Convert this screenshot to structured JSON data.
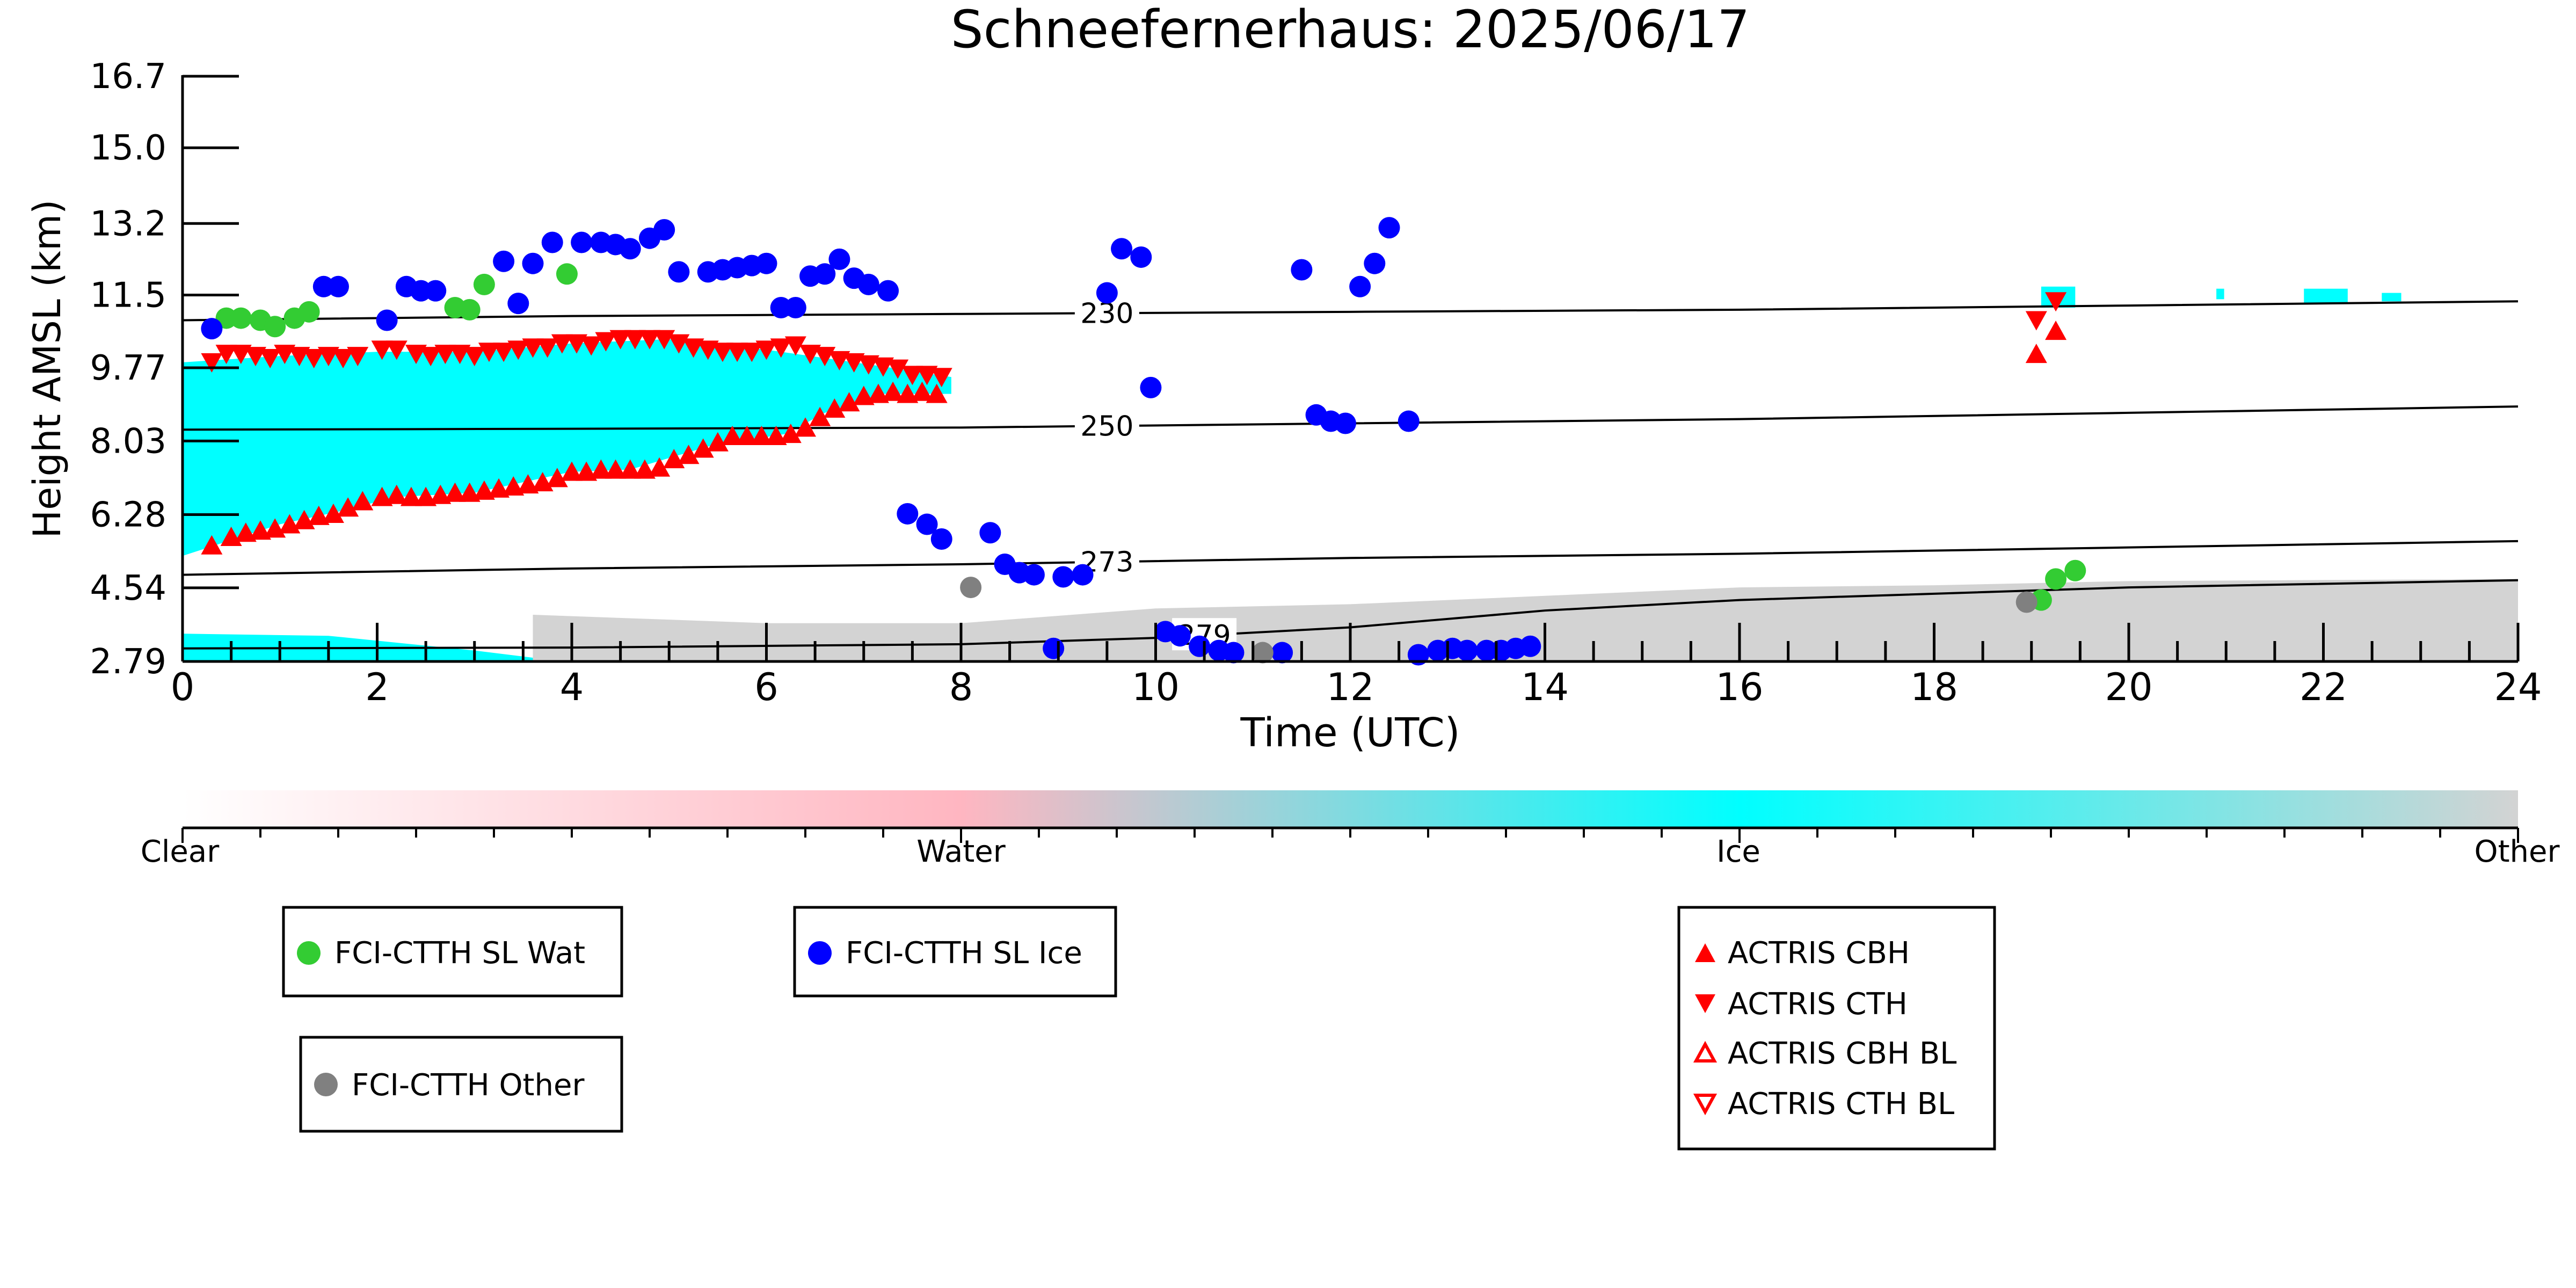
{
  "chart_data": {
    "type": "scatter",
    "title": "Schneefernerhaus: 2025/06/17",
    "xlabel": "Time (UTC)",
    "ylabel": "Height AMSL (km)",
    "xlim": [
      0,
      24
    ],
    "ylim": [
      2.79,
      16.7
    ],
    "x_ticks": [
      0,
      2,
      4,
      6,
      8,
      10,
      12,
      14,
      16,
      18,
      20,
      22,
      24
    ],
    "x_tick_labels": [
      "0",
      "2",
      "4",
      "6",
      "8",
      "10",
      "12",
      "14",
      "16",
      "18",
      "20",
      "22",
      "24"
    ],
    "y_ticks": [
      2.79,
      4.54,
      6.28,
      8.03,
      9.77,
      11.5,
      13.2,
      15.0,
      16.7
    ],
    "y_tick_labels": [
      "2.79",
      "4.54",
      "6.28",
      "8.03",
      "9.77",
      "11.5",
      "13.2",
      "15.0",
      "16.7"
    ],
    "grid": false,
    "colorbar": {
      "labels": [
        "Clear",
        "Water",
        "Ice",
        "Other"
      ],
      "colors": [
        "#ffffff",
        "#ffb6c1",
        "#00ffff",
        "#d3d3d3"
      ]
    },
    "contours": [
      {
        "label": "230",
        "label_x": 9.5,
        "x": [
          0,
          4,
          8,
          12,
          16,
          20,
          24
        ],
        "y": [
          10.9,
          11.0,
          11.05,
          11.1,
          11.15,
          11.25,
          11.35
        ]
      },
      {
        "label": "250",
        "label_x": 9.5,
        "x": [
          0,
          4,
          8,
          12,
          16,
          20,
          24
        ],
        "y": [
          8.3,
          8.32,
          8.35,
          8.45,
          8.55,
          8.7,
          8.85
        ]
      },
      {
        "label": "273",
        "label_x": 9.5,
        "x": [
          0,
          4,
          8,
          12,
          16,
          20,
          24
        ],
        "y": [
          4.85,
          5.0,
          5.1,
          5.25,
          5.35,
          5.5,
          5.65
        ]
      },
      {
        "label": "279",
        "label_x": 10.5,
        "x": [
          0,
          4,
          8,
          10,
          12,
          14,
          16,
          20,
          24
        ],
        "y": [
          3.1,
          3.12,
          3.2,
          3.35,
          3.6,
          4.0,
          4.25,
          4.55,
          4.72
        ]
      }
    ],
    "series": [
      {
        "name": "FCI-CTTH SL Wat",
        "color": "#33cc33",
        "marker": "circle",
        "x": [
          0.45,
          0.6,
          0.8,
          0.95,
          1.15,
          1.3,
          2.8,
          2.95,
          3.1,
          3.95,
          19.1,
          19.25,
          19.45
        ],
        "y": [
          10.95,
          10.95,
          10.9,
          10.75,
          10.95,
          11.1,
          11.2,
          11.15,
          11.75,
          12.0,
          4.25,
          4.75,
          4.95
        ]
      },
      {
        "name": "FCI-CTTH SL Ice",
        "color": "#0000ff",
        "marker": "circle",
        "x": [
          0.3,
          1.45,
          1.6,
          2.1,
          2.3,
          2.45,
          2.6,
          3.3,
          3.45,
          3.6,
          3.8,
          4.1,
          4.3,
          4.45,
          4.6,
          4.8,
          4.95,
          5.1,
          5.4,
          5.55,
          5.7,
          5.85,
          6.0,
          6.15,
          6.3,
          6.45,
          6.6,
          6.75,
          6.9,
          7.05,
          7.25,
          7.45,
          7.65,
          7.8,
          8.3,
          8.45,
          8.6,
          8.75,
          9.05,
          9.25,
          9.5,
          9.65,
          9.85,
          9.95,
          8.95,
          10.1,
          10.25,
          10.45,
          10.65,
          10.8,
          11.3,
          11.5,
          11.65,
          11.8,
          11.95,
          12.1,
          12.25,
          12.4,
          12.6,
          12.7,
          12.9,
          13.05,
          13.2,
          13.4,
          13.55,
          13.7,
          13.85
        ],
        "y": [
          10.7,
          11.7,
          11.7,
          10.9,
          11.7,
          11.6,
          11.6,
          12.3,
          11.3,
          12.25,
          12.75,
          12.75,
          12.75,
          12.7,
          12.6,
          12.85,
          13.05,
          12.05,
          12.05,
          12.1,
          12.15,
          12.2,
          12.25,
          11.2,
          11.2,
          11.95,
          12.0,
          12.35,
          11.9,
          11.75,
          11.6,
          6.3,
          6.05,
          5.7,
          5.85,
          5.1,
          4.9,
          4.85,
          4.8,
          4.85,
          11.55,
          12.6,
          12.4,
          9.3,
          3.1,
          3.5,
          3.4,
          3.15,
          3.05,
          3.0,
          3.0,
          12.1,
          8.65,
          8.5,
          8.45,
          11.7,
          12.25,
          13.1,
          8.5,
          2.95,
          3.05,
          3.1,
          3.05,
          3.05,
          3.05,
          3.1,
          3.15
        ]
      },
      {
        "name": "FCI-CTTH Other",
        "color": "#808080",
        "marker": "circle",
        "x": [
          8.1,
          11.1,
          18.95
        ],
        "y": [
          4.55,
          3.0,
          4.2
        ]
      },
      {
        "name": "ACTRIS CBH",
        "color": "#ff0000",
        "marker": "triangle-up",
        "x": [
          0.3,
          0.5,
          0.65,
          0.8,
          0.95,
          1.1,
          1.25,
          1.4,
          1.55,
          1.7,
          1.85,
          2.05,
          2.2,
          2.35,
          2.5,
          2.65,
          2.8,
          2.95,
          3.1,
          3.25,
          3.4,
          3.55,
          3.7,
          3.85,
          4.0,
          4.15,
          4.3,
          4.45,
          4.6,
          4.75,
          4.9,
          5.05,
          5.2,
          5.35,
          5.5,
          5.65,
          5.8,
          5.95,
          6.1,
          6.25,
          6.4,
          6.55,
          6.7,
          6.85,
          7.0,
          7.15,
          7.3,
          7.45,
          7.6,
          7.75,
          19.05,
          19.25
        ],
        "y": [
          5.55,
          5.75,
          5.85,
          5.9,
          5.95,
          6.05,
          6.15,
          6.25,
          6.3,
          6.45,
          6.6,
          6.7,
          6.75,
          6.7,
          6.7,
          6.75,
          6.8,
          6.8,
          6.85,
          6.9,
          6.95,
          7.0,
          7.05,
          7.15,
          7.3,
          7.3,
          7.35,
          7.35,
          7.35,
          7.35,
          7.4,
          7.6,
          7.7,
          7.85,
          8.0,
          8.15,
          8.15,
          8.15,
          8.15,
          8.2,
          8.35,
          8.6,
          8.8,
          8.95,
          9.1,
          9.15,
          9.2,
          9.15,
          9.2,
          9.15,
          10.1,
          10.65
        ]
      },
      {
        "name": "ACTRIS CTH",
        "color": "#ff0000",
        "marker": "triangle-down",
        "x": [
          0.3,
          0.45,
          0.6,
          0.75,
          0.9,
          1.05,
          1.2,
          1.35,
          1.5,
          1.65,
          1.8,
          2.05,
          2.2,
          2.4,
          2.55,
          2.7,
          2.85,
          3.0,
          3.15,
          3.3,
          3.45,
          3.6,
          3.75,
          3.9,
          4.05,
          4.2,
          4.35,
          4.5,
          4.65,
          4.8,
          4.95,
          5.1,
          5.25,
          5.4,
          5.55,
          5.7,
          5.85,
          6.0,
          6.15,
          6.3,
          6.45,
          6.6,
          6.75,
          6.9,
          7.05,
          7.2,
          7.35,
          7.5,
          7.65,
          7.8,
          19.05,
          19.25
        ],
        "y": [
          9.9,
          10.1,
          10.1,
          10.05,
          10.0,
          10.1,
          10.05,
          10.0,
          10.05,
          10.0,
          10.05,
          10.2,
          10.2,
          10.1,
          10.05,
          10.1,
          10.1,
          10.05,
          10.15,
          10.15,
          10.2,
          10.25,
          10.25,
          10.35,
          10.35,
          10.3,
          10.4,
          10.45,
          10.45,
          10.45,
          10.45,
          10.35,
          10.25,
          10.2,
          10.15,
          10.15,
          10.15,
          10.2,
          10.25,
          10.3,
          10.1,
          10.05,
          9.95,
          9.9,
          9.85,
          9.8,
          9.75,
          9.6,
          9.6,
          9.55,
          10.9,
          11.35
        ]
      },
      {
        "name": "ACTRIS CBH BL",
        "color": "#ff0000",
        "marker": "triangle-up-open",
        "x": [],
        "y": []
      },
      {
        "name": "ACTRIS CTH BL",
        "color": "#ff0000",
        "marker": "triangle-down-open",
        "x": [],
        "y": []
      }
    ],
    "legends": [
      {
        "entries": [
          "FCI-CTTH SL Wat"
        ]
      },
      {
        "entries": [
          "FCI-CTTH SL Ice"
        ]
      },
      {
        "entries": [
          "FCI-CTTH Other"
        ]
      },
      {
        "entries": [
          "ACTRIS CBH",
          "ACTRIS CTH",
          "ACTRIS CBH BL",
          "ACTRIS CTH BL"
        ]
      }
    ]
  }
}
